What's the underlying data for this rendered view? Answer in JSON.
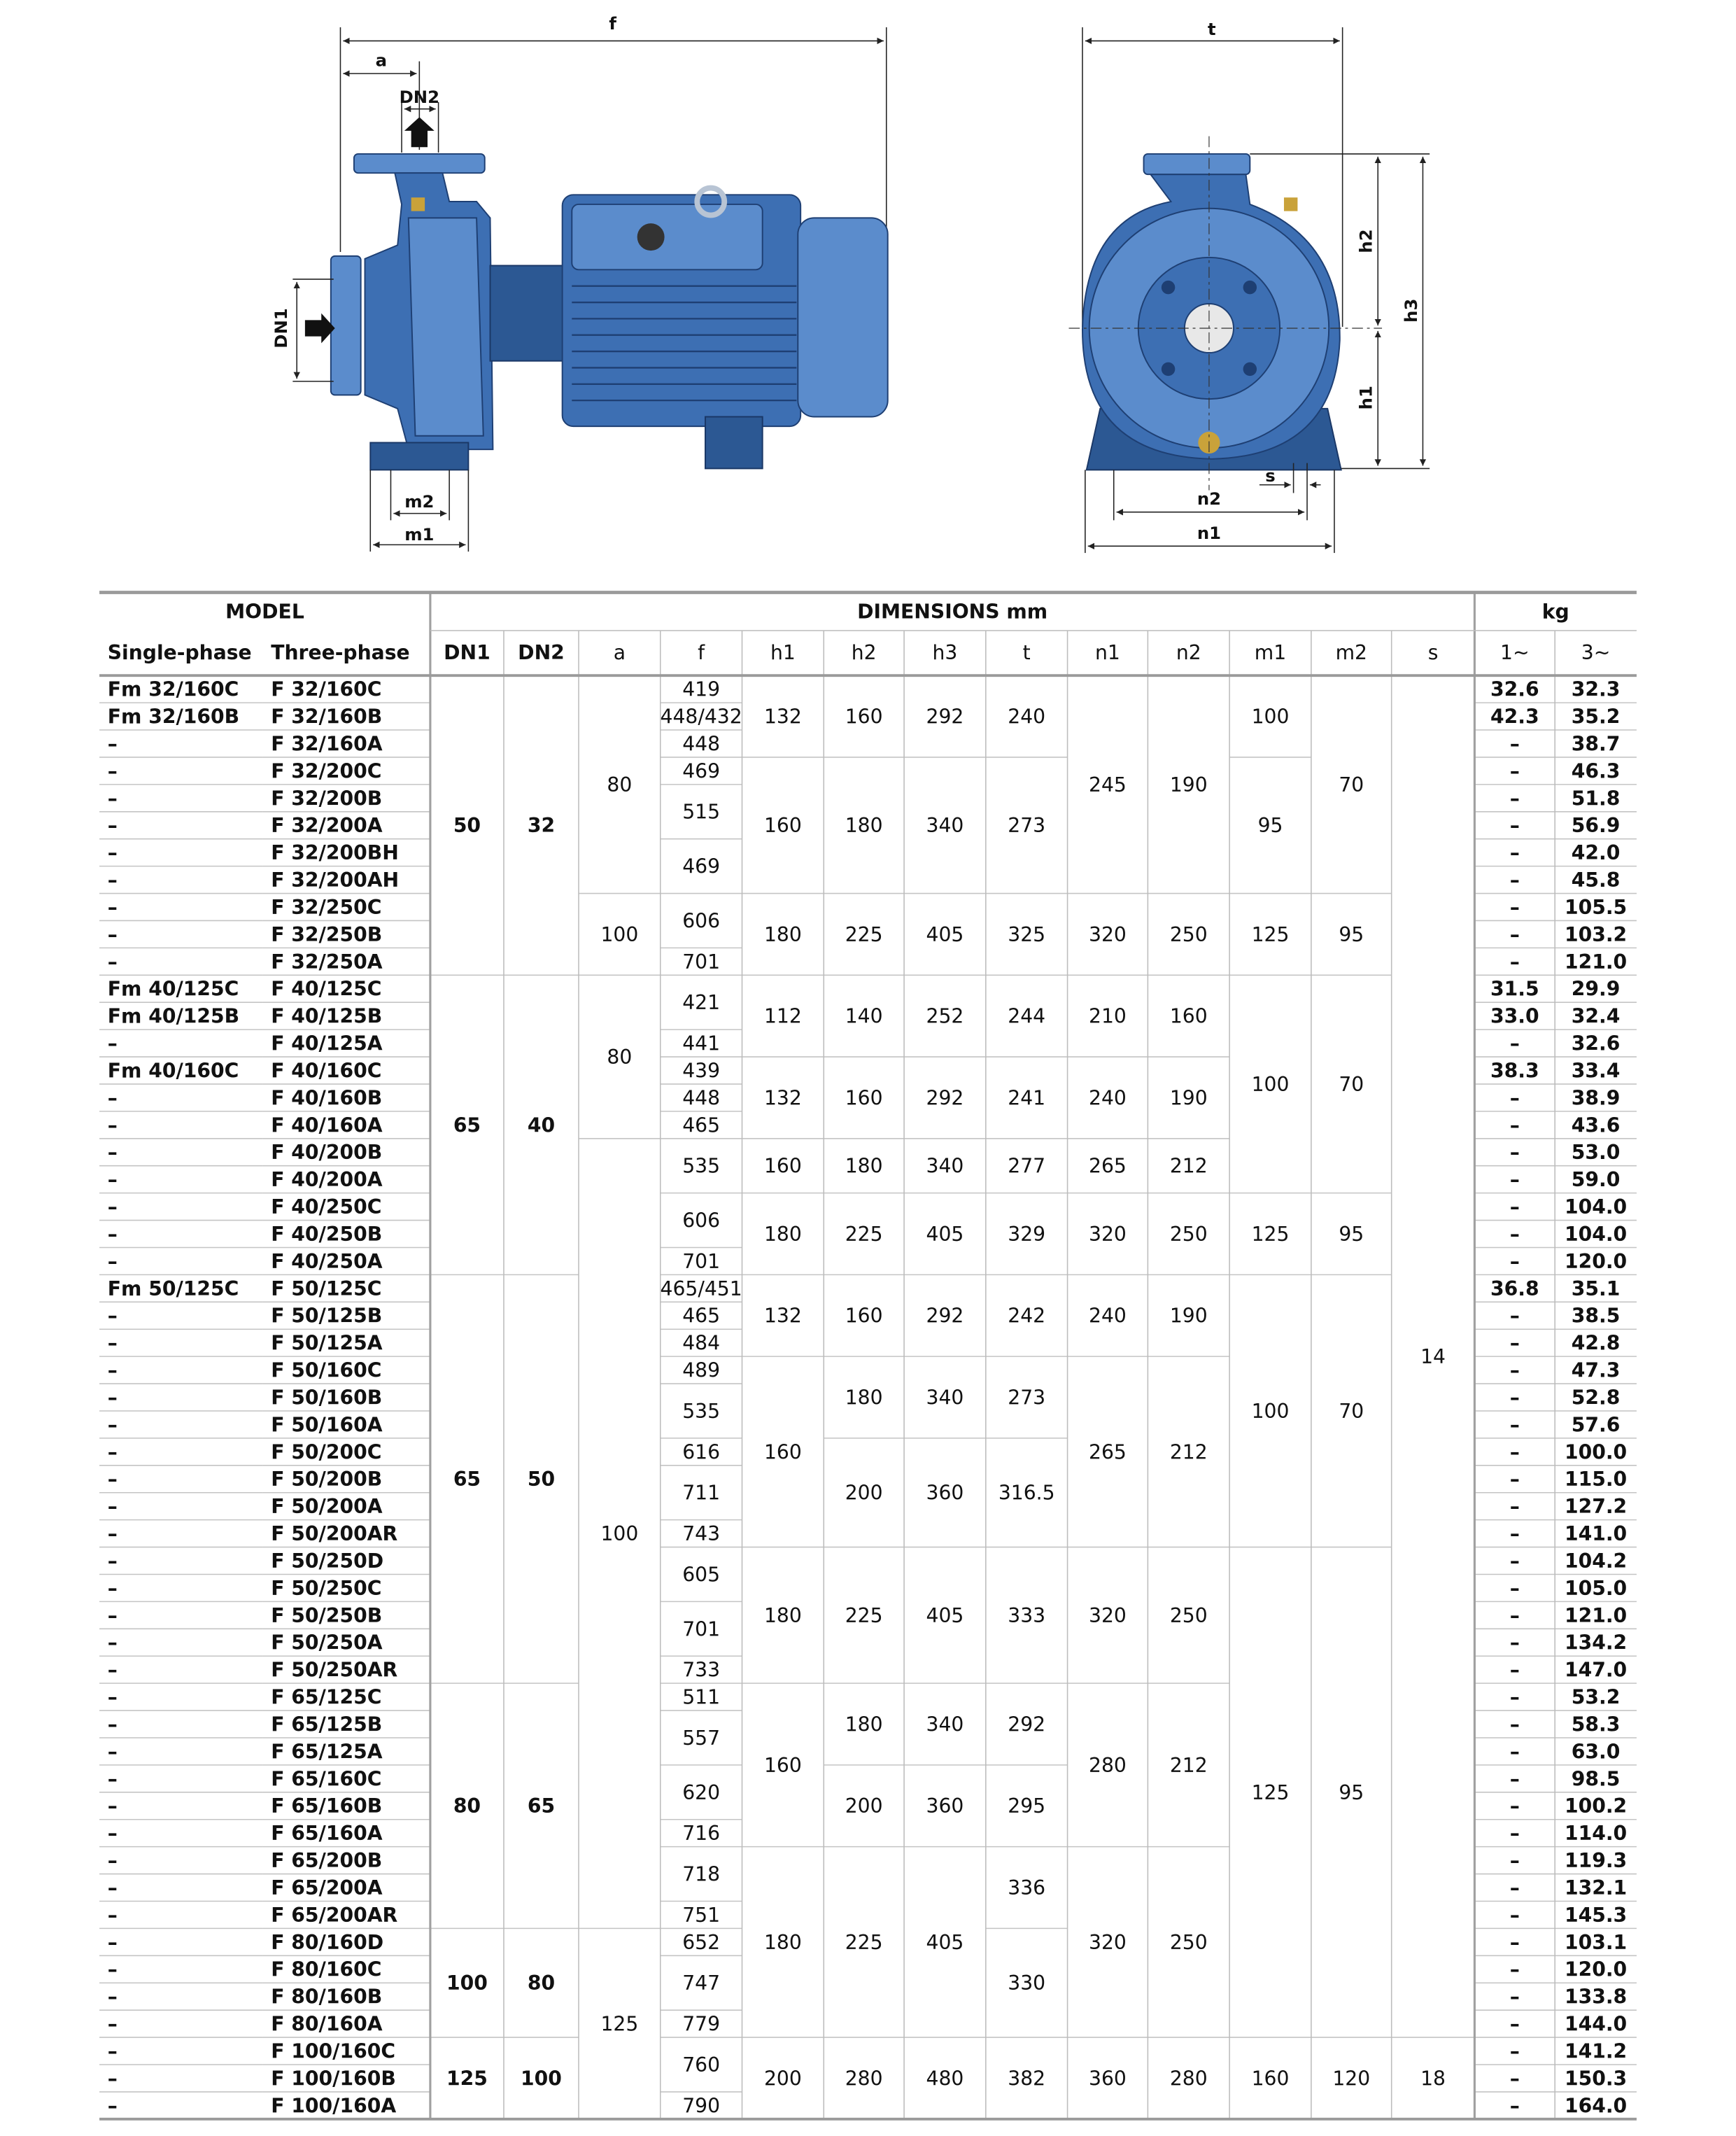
{
  "diagram": {
    "side_view": {
      "f": "f",
      "a": "a",
      "DN2": "DN2",
      "DN1": "DN1",
      "m2": "m2",
      "m1": "m1"
    },
    "front_view": {
      "t": "t",
      "h2": "h2",
      "h3": "h3",
      "h1": "h1",
      "s": "s",
      "n2": "n2",
      "n1": "n1"
    }
  },
  "table": {
    "group_headers": [
      "MODEL",
      "DIMENSIONS mm",
      "kg"
    ],
    "column_headers": [
      "Single-phase",
      "Three-phase",
      "DN1",
      "DN2",
      "a",
      "f",
      "h1",
      "h2",
      "h3",
      "t",
      "n1",
      "n2",
      "m1",
      "m2",
      "s",
      "1~",
      "3~"
    ],
    "columns": [
      [
        "Fm 32/160C",
        "Fm 32/160B",
        "–",
        "–",
        "–",
        "–",
        "–",
        "–",
        "–",
        "–",
        "–",
        "Fm 40/125C",
        "Fm 40/125B",
        "–",
        "Fm 40/160C",
        "–",
        "–",
        "–",
        "–",
        "–",
        "–",
        "–",
        "Fm 50/125C",
        "–",
        "–",
        "–",
        "–",
        "–",
        "–",
        "–",
        "–",
        "–",
        "–",
        "–",
        "–",
        "–",
        "–",
        "–",
        "–",
        "–",
        "–",
        "–",
        "–",
        "–",
        "–",
        "–",
        "–",
        "–",
        "–",
        "–",
        "–",
        "–",
        "–"
      ],
      [
        "F 32/160C",
        "F 32/160B",
        "F 32/160A",
        "F 32/200C",
        "F 32/200B",
        "F 32/200A",
        "F 32/200BH",
        "F 32/200AH",
        "F 32/250C",
        "F 32/250B",
        "F 32/250A",
        "F 40/125C",
        "F 40/125B",
        "F 40/125A",
        "F 40/160C",
        "F 40/160B",
        "F 40/160A",
        "F 40/200B",
        "F 40/200A",
        "F 40/250C",
        "F 40/250B",
        "F 40/250A",
        "F 50/125C",
        "F 50/125B",
        "F 50/125A",
        "F 50/160C",
        "F 50/160B",
        "F 50/160A",
        "F 50/200C",
        "F 50/200B",
        "F 50/200A",
        "F 50/200AR",
        "F 50/250D",
        "F 50/250C",
        "F 50/250B",
        "F 50/250A",
        "F 50/250AR",
        "F 65/125C",
        "F 65/125B",
        "F 65/125A",
        "F 65/160C",
        "F 65/160B",
        "F 65/160A",
        "F 65/200B",
        "F 65/200A",
        "F 65/200AR",
        "F 80/160D",
        "F 80/160C",
        "F 80/160B",
        "F 80/160A",
        "F 100/160C",
        "F 100/160B",
        "F 100/160A"
      ],
      [
        "50",
        "65",
        "65",
        "80",
        "100",
        "125"
      ],
      [
        "32",
        "40",
        "50",
        "65",
        "80",
        "100"
      ],
      [
        "80",
        "100",
        "80",
        "100",
        "125"
      ],
      [
        "419",
        "448/432",
        "448",
        "469",
        "515",
        "469",
        "606",
        "701",
        "421",
        "441",
        "439",
        "448",
        "465",
        "535",
        "606",
        "701",
        "465/451",
        "465",
        "484",
        "489",
        "535",
        "616",
        "711",
        "743",
        "605",
        "701",
        "733",
        "511",
        "557",
        "620",
        "716",
        "718",
        "751",
        "652",
        "747",
        "779",
        "760",
        "790"
      ],
      [
        "132",
        "160",
        "180",
        "112",
        "132",
        "160",
        "180",
        "132",
        "160",
        "180",
        "160",
        "180",
        "200"
      ],
      [
        "160",
        "180",
        "225",
        "140",
        "160",
        "180",
        "225",
        "160",
        "180",
        "200",
        "225",
        "180",
        "200",
        "225",
        "280"
      ],
      [
        "292",
        "340",
        "405",
        "252",
        "292",
        "340",
        "405",
        "292",
        "340",
        "360",
        "405",
        "340",
        "360",
        "405",
        "480"
      ],
      [
        "240",
        "273",
        "325",
        "244",
        "241",
        "277",
        "329",
        "242",
        "273",
        "316.5",
        "333",
        "292",
        "295",
        "336",
        "330",
        "382"
      ],
      [
        "245",
        "320",
        "210",
        "240",
        "265",
        "320",
        "240",
        "265",
        "320",
        "280",
        "320",
        "360"
      ],
      [
        "190",
        "250",
        "160",
        "190",
        "212",
        "250",
        "190",
        "212",
        "250",
        "212",
        "250",
        "280"
      ],
      [
        "100",
        "95",
        "125",
        "100",
        "125",
        "100",
        "125",
        "160"
      ],
      [
        "70",
        "95",
        "70",
        "95",
        "70",
        "95",
        "120"
      ],
      [
        "14",
        "18"
      ],
      [
        "32.6",
        "42.3",
        "–",
        "–",
        "–",
        "–",
        "–",
        "–",
        "–",
        "–",
        "–",
        "31.5",
        "33.0",
        "–",
        "38.3",
        "–",
        "–",
        "–",
        "–",
        "–",
        "–",
        "–",
        "36.8",
        "–",
        "–",
        "–",
        "–",
        "–",
        "–",
        "–",
        "–",
        "–",
        "–",
        "–",
        "–",
        "–",
        "–",
        "–",
        "–",
        "–",
        "–",
        "–",
        "–",
        "–",
        "–",
        "–",
        "–",
        "–",
        "–",
        "–",
        "–",
        "–",
        "–"
      ],
      [
        "32.3",
        "35.2",
        "38.7",
        "46.3",
        "51.8",
        "56.9",
        "42.0",
        "45.8",
        "105.5",
        "103.2",
        "121.0",
        "29.9",
        "32.4",
        "32.6",
        "33.4",
        "38.9",
        "43.6",
        "53.0",
        "59.0",
        "104.0",
        "104.0",
        "120.0",
        "35.1",
        "38.5",
        "42.8",
        "47.3",
        "52.8",
        "57.6",
        "100.0",
        "115.0",
        "127.2",
        "141.0",
        "104.2",
        "105.0",
        "121.0",
        "134.2",
        "147.0",
        "53.2",
        "58.3",
        "63.0",
        "98.5",
        "100.2",
        "114.0",
        "119.3",
        "132.1",
        "145.3",
        "103.1",
        "120.0",
        "133.8",
        "144.0",
        "141.2",
        "150.3",
        "164.0"
      ]
    ]
  }
}
